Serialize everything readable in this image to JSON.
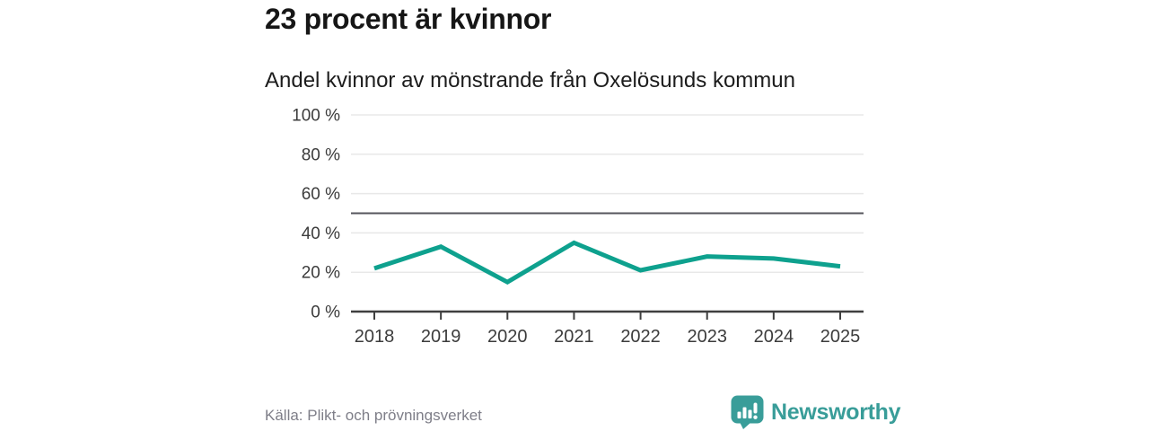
{
  "chart_data": {
    "type": "line",
    "title": "23 procent är kvinnor",
    "subtitle": "Andel kvinnor av mönstrande från Oxelösunds kommun",
    "categories": [
      "2018",
      "2019",
      "2020",
      "2021",
      "2022",
      "2023",
      "2024",
      "2025"
    ],
    "series": [
      {
        "name": "Andel kvinnor",
        "values": [
          22,
          33,
          15,
          35,
          21,
          28,
          27,
          23
        ]
      }
    ],
    "xlabel": "",
    "ylabel": "",
    "ylim": [
      0,
      100
    ],
    "yticks": [
      0,
      20,
      40,
      60,
      80,
      100
    ],
    "ytick_suffix": " %",
    "reference_line": 50,
    "grid": true,
    "legend": "none",
    "colors": {
      "line": "#0ea18e",
      "grid": "#e8e8e8",
      "reference": "#55555d",
      "axis": "#3f3f3f",
      "tick_label": "#3c3c3c"
    }
  },
  "footer": {
    "source": "Källa: Plikt- och prövningsverket",
    "brand": {
      "name": "Newsworthy",
      "color": "#399d99",
      "icon": "bar-chart-speech-bubble-icon"
    }
  }
}
